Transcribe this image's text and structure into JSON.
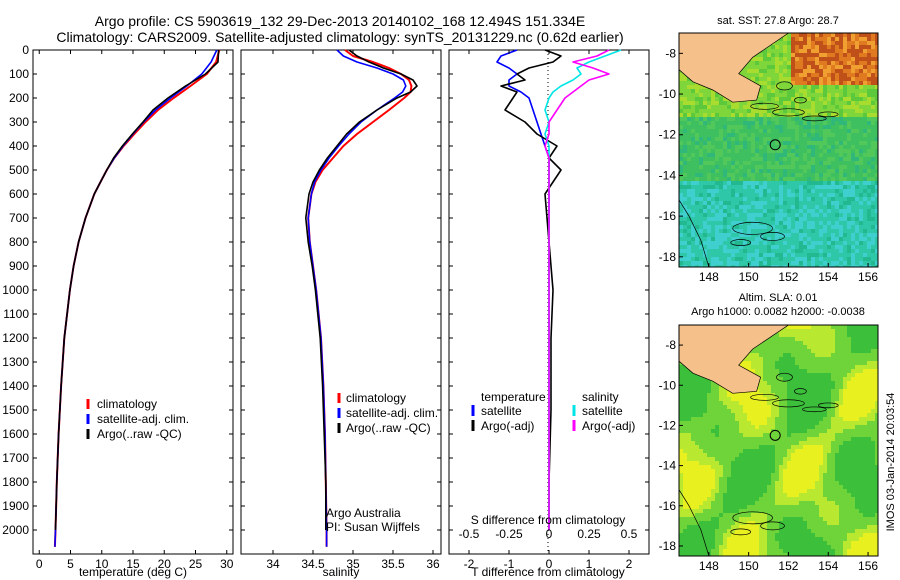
{
  "title": {
    "line1": "Argo profile: CS 5903619_132 29-Dec-2013 20140102_168 12.494S 151.334E",
    "line2": "Climatology: CARS2009. Satellite-adjusted climatology: synTS_20131229.nc (0.62d earlier)"
  },
  "credit": "IMOS 03-Jan-2014 20:03:54",
  "colors": {
    "clim": "#ff0000",
    "sat": "#0000ff",
    "argo": "#000000",
    "sat_s": "#00e5e5",
    "argo_s": "#ff00ff",
    "land": "#f5c08a"
  },
  "chart_data": [
    {
      "type": "line",
      "panel": "temperature",
      "xlabel": "temperature (deg C)",
      "xlim": [
        -1,
        31
      ],
      "ylim": [
        0,
        2100
      ],
      "xticks": [
        0,
        5,
        10,
        15,
        20,
        25,
        30
      ],
      "yticks": [
        0,
        100,
        200,
        300,
        400,
        500,
        600,
        700,
        800,
        900,
        1000,
        1100,
        1200,
        1300,
        1400,
        1500,
        1600,
        1700,
        1800,
        1900,
        2000
      ],
      "y": [
        0,
        50,
        100,
        150,
        200,
        250,
        300,
        350,
        400,
        450,
        500,
        550,
        600,
        700,
        800,
        900,
        1000,
        1200,
        1400,
        1600,
        1800,
        2000,
        2070
      ],
      "series": [
        {
          "name": "climatology",
          "values": [
            28.8,
            28.3,
            26.8,
            24.2,
            21.5,
            19.0,
            17.0,
            15.2,
            13.5,
            12.0,
            10.8,
            9.8,
            8.8,
            7.4,
            6.3,
            5.5,
            4.9,
            4.0,
            3.5,
            3.1,
            2.8,
            2.6,
            2.5
          ]
        },
        {
          "name": "satellite-adj. clim.",
          "values": [
            28.4,
            27.5,
            26.0,
            23.6,
            21.0,
            18.6,
            16.7,
            15.0,
            13.4,
            12.0,
            10.8,
            9.8,
            8.8,
            7.4,
            6.3,
            5.5,
            4.9,
            4.0,
            3.5,
            3.1,
            2.8,
            2.6,
            2.5
          ]
        },
        {
          "name": "Argo(..raw -QC)",
          "values": [
            28.7,
            28.6,
            26.6,
            23.4,
            20.6,
            18.2,
            16.6,
            14.9,
            13.3,
            11.9,
            10.8,
            9.8,
            8.8,
            7.4,
            6.3,
            5.5,
            4.9,
            4.0,
            3.5,
            3.1,
            2.8,
            2.6,
            null
          ]
        }
      ],
      "legend": [
        "climatology",
        "satellite-adj. clim.",
        "Argo(..raw -QC)"
      ]
    },
    {
      "type": "line",
      "panel": "salinity",
      "xlabel": "salinity",
      "xlim": [
        33.6,
        36.1
      ],
      "ylim": [
        0,
        2100
      ],
      "xticks": [
        34,
        34.5,
        35,
        35.5,
        36
      ],
      "y": [
        0,
        25,
        50,
        75,
        100,
        125,
        150,
        175,
        200,
        250,
        300,
        350,
        400,
        450,
        500,
        550,
        600,
        700,
        800,
        900,
        1000,
        1200,
        1400,
        1600,
        1800,
        2000,
        2070
      ],
      "series": [
        {
          "name": "climatology",
          "values": [
            34.9,
            35.0,
            35.25,
            35.45,
            35.6,
            35.7,
            35.73,
            35.72,
            35.64,
            35.45,
            35.25,
            35.05,
            34.88,
            34.75,
            34.62,
            34.53,
            34.48,
            34.44,
            34.46,
            34.5,
            34.54,
            34.6,
            34.63,
            34.65,
            34.66,
            34.67,
            34.67
          ]
        },
        {
          "name": "satellite-adj. clim.",
          "values": [
            34.8,
            34.88,
            35.05,
            35.3,
            35.5,
            35.63,
            35.66,
            35.62,
            35.52,
            35.3,
            35.1,
            34.95,
            34.82,
            34.7,
            34.6,
            34.52,
            34.48,
            34.44,
            34.46,
            34.5,
            34.54,
            34.6,
            34.63,
            34.65,
            34.66,
            34.67,
            34.67
          ]
        },
        {
          "name": "Argo(..raw -QC)",
          "values": [
            34.95,
            35.05,
            35.2,
            35.38,
            35.6,
            35.75,
            35.8,
            35.72,
            35.55,
            35.3,
            35.08,
            34.92,
            34.8,
            34.68,
            34.58,
            34.5,
            34.45,
            34.41,
            34.44,
            34.49,
            34.53,
            34.59,
            34.62,
            34.64,
            34.66,
            34.66,
            null
          ]
        }
      ],
      "legend": [
        "climatology",
        "satellite-adj. clim.",
        "Argo(..raw -QC)"
      ],
      "annotations": [
        "Argo Australia",
        "PI: Susan Wijffels"
      ]
    },
    {
      "type": "line",
      "panel": "difference",
      "xlabel": "T difference from climatology",
      "xlabel_top": "S difference from climatology",
      "xlim": [
        -2.5,
        2.5
      ],
      "ylim": [
        0,
        2100
      ],
      "xticks_t": [
        -2,
        -1,
        0,
        1,
        2
      ],
      "xticks_s": [
        "-0.5",
        "-0.25",
        "0",
        "0.25",
        "0.5"
      ],
      "xticks_s_values": [
        -2,
        -1,
        0,
        1,
        2
      ],
      "y": [
        0,
        25,
        50,
        75,
        100,
        125,
        150,
        175,
        200,
        250,
        300,
        350,
        400,
        450,
        500,
        550,
        600,
        700,
        800,
        1000,
        1200,
        1500,
        1800,
        2000
      ],
      "series": [
        {
          "name": "temperature satellite",
          "values": [
            -0.8,
            -1.2,
            -1.3,
            -1.0,
            -0.8,
            -1.0,
            -1.0,
            -0.7,
            -0.5,
            -0.4,
            -0.3,
            -0.2,
            -0.1,
            0.0,
            0.0,
            0.0,
            0.0,
            0.0,
            0.0,
            0.0,
            0.0,
            0.0,
            0.0,
            0.0
          ]
        },
        {
          "name": "temperature Argo(-adj)",
          "values": [
            -0.1,
            0.3,
            0.1,
            -0.5,
            -0.8,
            -0.6,
            -1.2,
            -0.8,
            -0.9,
            -1.1,
            -0.6,
            -0.3,
            0.2,
            0.0,
            0.3,
            0.1,
            -0.1,
            -0.05,
            0.0,
            0.1,
            0.05,
            0.05,
            0.0,
            0.0
          ]
        },
        {
          "name": "salinity satellite",
          "values": [
            1.8,
            1.4,
            1.0,
            0.7,
            0.8,
            0.6,
            0.3,
            0.1,
            0.0,
            -0.1,
            0.0,
            -0.1,
            0.0,
            0.0,
            0.0,
            0.0,
            0.0,
            0.0,
            0.0,
            0.0,
            0.0,
            0.0,
            0.0,
            0.0
          ]
        },
        {
          "name": "salinity Argo(-adj)",
          "values": [
            1.5,
            1.2,
            0.6,
            1.1,
            1.5,
            1.0,
            0.8,
            0.6,
            0.4,
            0.2,
            0.0,
            0.0,
            -0.1,
            0.0,
            0.0,
            0.0,
            0.0,
            0.0,
            0.0,
            0.0,
            0.0,
            0.0,
            0.0,
            0.0
          ]
        }
      ],
      "legend_t": {
        "header": "temperature",
        "items": [
          "satellite",
          "Argo(-adj)"
        ]
      },
      "legend_s": {
        "header": "salinity",
        "items": [
          "satellite",
          "Argo(-adj)"
        ]
      }
    },
    {
      "type": "heatmap",
      "panel": "sst_map",
      "title": "sat. SST: 27.8 Argo: 28.7",
      "xlim": [
        146.5,
        156.5
      ],
      "ylim": [
        -18.5,
        -7
      ],
      "xticks": [
        148,
        150,
        152,
        154,
        156
      ],
      "yticks": [
        -8,
        -10,
        -12,
        -14,
        -16,
        -18
      ],
      "marker": {
        "lon": 151.334,
        "lat": -12.494
      }
    },
    {
      "type": "heatmap",
      "panel": "sla_map",
      "title": "Altim. SLA: 0.01",
      "subtitle": "Argo h1000: 0.0082 h2000: -0.0038",
      "xlim": [
        146.5,
        156.5
      ],
      "ylim": [
        -18.5,
        -7
      ],
      "xticks": [
        148,
        150,
        152,
        154,
        156
      ],
      "yticks": [
        -8,
        -10,
        -12,
        -14,
        -16,
        -18
      ],
      "marker": {
        "lon": 151.334,
        "lat": -12.494
      }
    }
  ]
}
